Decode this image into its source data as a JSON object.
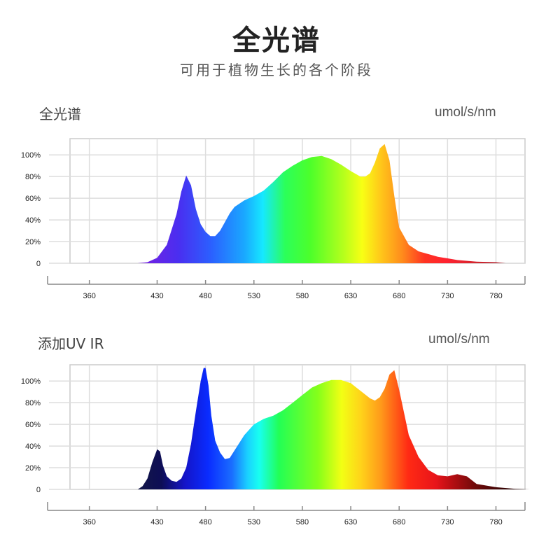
{
  "header": {
    "title": "全光谱",
    "subtitle": "可用于植物生长的各个阶段"
  },
  "chart_data": [
    {
      "type": "area",
      "title": "全光谱",
      "unit_label": "umol/s/nm",
      "xlabel": "",
      "ylabel": "",
      "x_ticks": [
        360,
        430,
        480,
        530,
        580,
        630,
        680,
        730,
        780
      ],
      "y_ticks": [
        0,
        20,
        40,
        60,
        80,
        100
      ],
      "y_tick_labels": [
        "0",
        "20%",
        "40%",
        "60%",
        "80%",
        "100%"
      ],
      "xlim": [
        340,
        810
      ],
      "ylim": [
        0,
        115
      ],
      "grid": true,
      "fill": "visible-spectrum-gradient",
      "x": [
        410,
        420,
        430,
        440,
        450,
        455,
        460,
        465,
        470,
        475,
        480,
        485,
        490,
        495,
        500,
        505,
        510,
        520,
        530,
        540,
        550,
        560,
        570,
        580,
        590,
        600,
        610,
        620,
        630,
        640,
        645,
        650,
        655,
        660,
        665,
        670,
        675,
        680,
        690,
        700,
        720,
        740,
        760,
        780,
        790
      ],
      "values": [
        0,
        1,
        5,
        17,
        45,
        66,
        81,
        72,
        50,
        36,
        29,
        25,
        25,
        30,
        38,
        46,
        52,
        58,
        62,
        67,
        75,
        84,
        90,
        95,
        98,
        99,
        96,
        91,
        85,
        80,
        80,
        83,
        93,
        106,
        110,
        95,
        62,
        33,
        17,
        11,
        6,
        3,
        1.5,
        1,
        0
      ]
    },
    {
      "type": "area",
      "title": "添加UV IR",
      "unit_label": "umol/s/nm",
      "xlabel": "",
      "ylabel": "",
      "x_ticks": [
        360,
        430,
        480,
        530,
        580,
        630,
        680,
        730,
        780
      ],
      "y_ticks": [
        0,
        20,
        40,
        60,
        80,
        100
      ],
      "y_tick_labels": [
        "0",
        "20%",
        "40%",
        "60%",
        "80%",
        "100%"
      ],
      "xlim": [
        340,
        810
      ],
      "ylim": [
        0,
        115
      ],
      "grid": true,
      "fill": "uv-visible-ir-gradient",
      "x": [
        410,
        415,
        420,
        425,
        430,
        433,
        436,
        440,
        445,
        450,
        455,
        460,
        465,
        470,
        475,
        478,
        480,
        483,
        486,
        490,
        495,
        500,
        505,
        510,
        520,
        530,
        540,
        550,
        560,
        570,
        580,
        590,
        600,
        610,
        620,
        630,
        640,
        650,
        655,
        660,
        665,
        670,
        675,
        680,
        690,
        700,
        710,
        720,
        730,
        740,
        750,
        760,
        780,
        800,
        815
      ],
      "values": [
        0,
        3,
        10,
        25,
        37,
        35,
        22,
        12,
        8,
        7,
        10,
        20,
        42,
        72,
        100,
        112,
        112,
        96,
        68,
        45,
        34,
        28,
        29,
        36,
        50,
        60,
        65,
        68,
        73,
        80,
        87,
        94,
        98,
        101,
        101,
        98,
        91,
        84,
        82,
        85,
        93,
        106,
        110,
        92,
        50,
        30,
        18,
        13,
        12,
        14,
        12,
        5,
        2,
        0.5,
        0
      ]
    }
  ]
}
